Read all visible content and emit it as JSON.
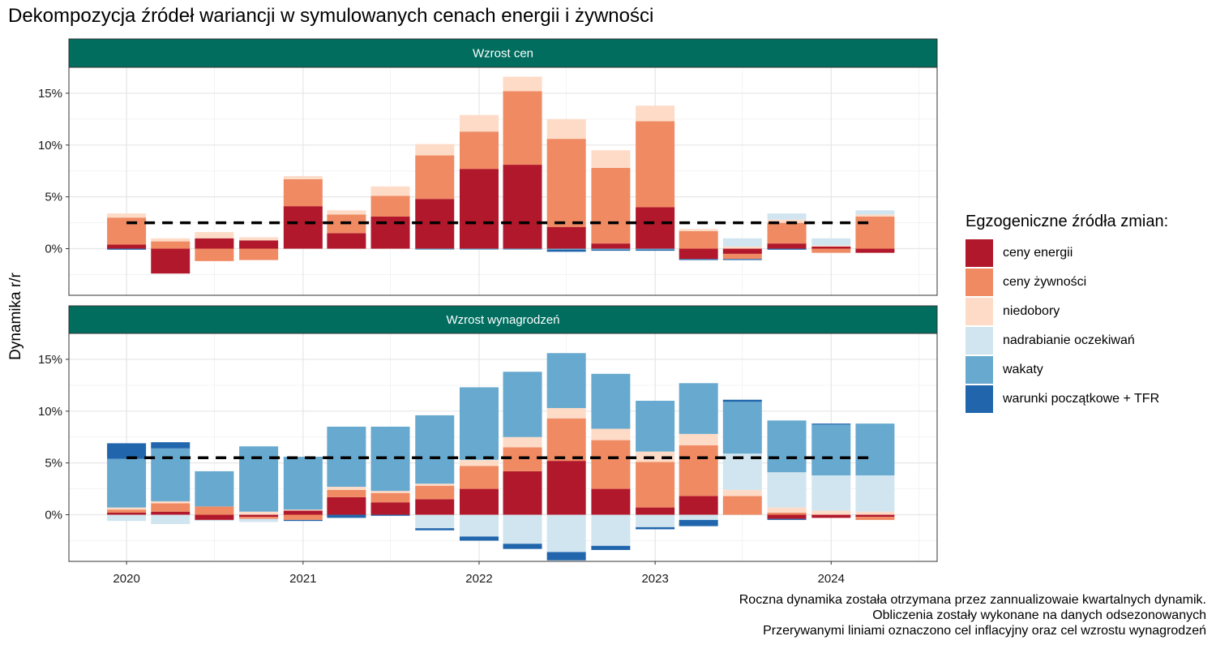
{
  "title": "Dekompozycja źródeł wariancji w symulowanych cenach energii i żywności",
  "caption": [
    "Roczna dynamika została otrzymana przez zannualizowaie kwartalnych dynamik.",
    "Obliczenia zostały wykonane na danych odsezonowanych",
    "Przerywanymi liniami oznaczono cel inflacyjny oraz cel wzrostu wynagrodzeń"
  ],
  "colors": {
    "panel_header": "#006D5F",
    "ceny_energii": "#B2182B",
    "ceny_zywnosci": "#EF8A62",
    "niedobory": "#FDDBC7",
    "nadrabianie_oczekiwan": "#D1E5F0",
    "wakaty": "#67A9CF",
    "warunki_poczatkowe_tfr": "#2166AC"
  },
  "chart_data": {
    "type": "bar",
    "stacked": true,
    "faceted": true,
    "ylabel": "Dynamika r/r",
    "xlabel": "",
    "x_tick_labels": [
      "2020",
      "2021",
      "2022",
      "2023",
      "2024"
    ],
    "y_tick_labels": [
      "0%",
      "5%",
      "10%",
      "15%"
    ],
    "ylim": [
      -4.5,
      17.5
    ],
    "grid": true,
    "legend": {
      "title": "Egzogeniczne źródła zmian:",
      "position": "right",
      "entries": [
        "ceny energii",
        "ceny żywności",
        "niedobory",
        "nadrabianie oczekiwań",
        "wakaty",
        "warunki początkowe + TFR"
      ]
    },
    "x": [
      "2020-01-01",
      "2020-04-01",
      "2020-07-01",
      "2020-10-01",
      "2021-01-01",
      "2021-04-01",
      "2021-07-01",
      "2021-10-01",
      "2022-01-01",
      "2022-04-01",
      "2022-07-01",
      "2022-10-01",
      "2023-01-01",
      "2023-04-01",
      "2023-07-01",
      "2023-10-01",
      "2024-01-01",
      "2024-04-01"
    ],
    "panels": [
      {
        "title": "Wzrost cen",
        "target": 2.5,
        "series": [
          {
            "name": "warunki początkowe + TFR",
            "values": [
              -0.1,
              0.0,
              0.0,
              0.0,
              0.0,
              0.0,
              0.0,
              0.0,
              0.0,
              0.0,
              -0.2,
              -0.1,
              -0.1,
              -0.1,
              -0.1,
              -0.1,
              0.0,
              0.0
            ]
          },
          {
            "name": "wakaty",
            "values": [
              0.0,
              0.0,
              0.0,
              0.0,
              0.0,
              0.0,
              0.0,
              -0.1,
              -0.1,
              -0.1,
              -0.1,
              -0.1,
              -0.1,
              0.0,
              0.0,
              0.0,
              0.0,
              0.0
            ]
          },
          {
            "name": "nadrabianie oczekiwań",
            "values": [
              0.0,
              0.0,
              0.0,
              0.0,
              0.0,
              0.0,
              0.0,
              0.0,
              0.0,
              0.0,
              0.0,
              0.0,
              0.0,
              0.0,
              0.8,
              0.6,
              0.7,
              0.4
            ]
          },
          {
            "name": "niedobory",
            "values": [
              0.4,
              0.3,
              0.6,
              0.3,
              0.3,
              0.4,
              0.9,
              1.1,
              1.6,
              1.4,
              1.9,
              1.7,
              1.5,
              0.2,
              0.2,
              0.3,
              0.1,
              0.2
            ]
          },
          {
            "name": "ceny żywności",
            "values": [
              2.6,
              0.7,
              -1.2,
              -1.1,
              2.6,
              1.8,
              2.0,
              4.2,
              3.6,
              7.1,
              8.5,
              7.3,
              8.3,
              1.7,
              -0.5,
              2.0,
              -0.4,
              3.1
            ]
          },
          {
            "name": "ceny energii",
            "values": [
              0.4,
              -2.4,
              1.0,
              0.8,
              4.1,
              1.5,
              3.1,
              4.8,
              7.7,
              8.1,
              2.1,
              0.5,
              4.0,
              -1.0,
              -0.5,
              0.5,
              0.2,
              -0.4
            ]
          }
        ]
      },
      {
        "title": "Wzrost wynagrodzeń",
        "target": 5.5,
        "series": [
          {
            "name": "warunki początkowe + TFR",
            "values": [
              1.5,
              0.6,
              0.0,
              0.0,
              -0.1,
              -0.3,
              -0.1,
              -0.2,
              -0.4,
              -0.5,
              -0.8,
              -0.4,
              -0.2,
              -0.6,
              0.2,
              -0.1,
              0.1,
              0.0
            ]
          },
          {
            "name": "wakaty",
            "values": [
              4.7,
              5.1,
              3.4,
              6.3,
              5.1,
              5.8,
              6.2,
              6.6,
              7.0,
              6.3,
              5.3,
              5.3,
              4.9,
              4.9,
              5.0,
              5.0,
              4.9,
              5.0
            ]
          },
          {
            "name": "nadrabianie oczekiwań",
            "values": [
              -0.6,
              -0.9,
              -0.1,
              -0.3,
              0.0,
              0.0,
              0.0,
              -1.3,
              -2.1,
              -2.8,
              -3.6,
              -3.0,
              -1.2,
              -0.5,
              3.5,
              3.4,
              3.4,
              3.5
            ]
          },
          {
            "name": "niedobory",
            "values": [
              0.2,
              0.2,
              0.0,
              0.3,
              0.1,
              0.3,
              0.2,
              0.2,
              0.6,
              1.0,
              1.0,
              1.1,
              1.0,
              1.1,
              0.6,
              0.5,
              0.4,
              0.3
            ]
          },
          {
            "name": "ceny żywności",
            "values": [
              0.3,
              0.8,
              0.8,
              -0.2,
              -0.5,
              0.7,
              0.9,
              1.3,
              2.2,
              2.3,
              4.1,
              4.7,
              4.4,
              4.9,
              1.8,
              0.2,
              0.0,
              -0.3
            ]
          },
          {
            "name": "ceny energii",
            "values": [
              0.2,
              0.3,
              -0.5,
              -0.2,
              0.4,
              1.7,
              1.2,
              1.5,
              2.5,
              4.2,
              5.2,
              2.5,
              0.7,
              1.8,
              0.0,
              -0.4,
              -0.3,
              -0.2
            ]
          }
        ]
      }
    ]
  }
}
